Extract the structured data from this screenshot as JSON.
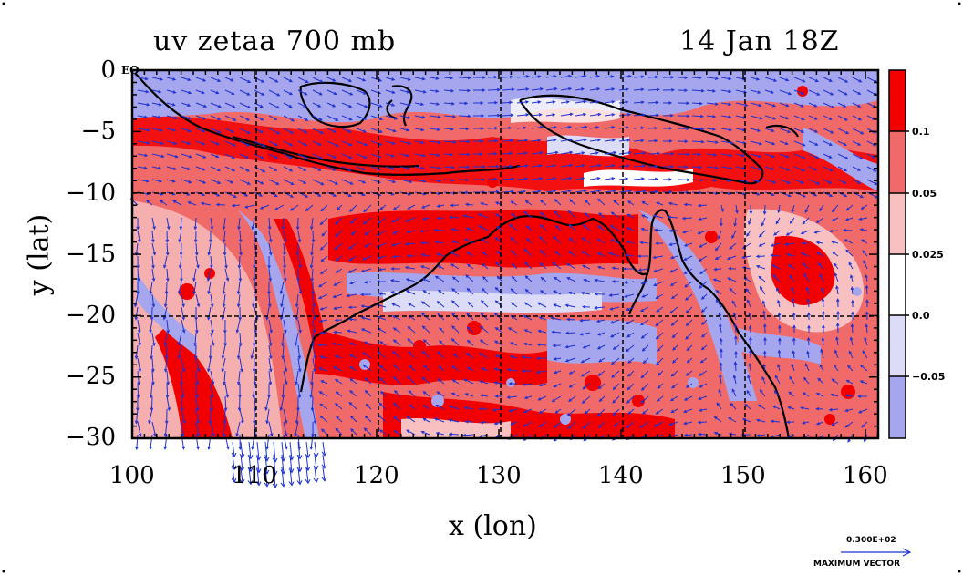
{
  "title_left": "uv zetaa 700 mb",
  "title_right": "14 Jan 18Z",
  "eq_label": "EQ",
  "x_axis": {
    "label": "x (lon)",
    "ticks": [
      "100",
      "110",
      "120",
      "130",
      "140",
      "150",
      "160"
    ]
  },
  "y_axis": {
    "label": "y (lat)",
    "ticks": [
      "0",
      "−5",
      "−10",
      "−15",
      "−20",
      "−25",
      "−30"
    ]
  },
  "colorbar": {
    "labels": [
      "0.1",
      "0.05",
      "0.025",
      "0.0",
      "−0.05"
    ],
    "colors": [
      "#f20000",
      "#f06a6a",
      "#f8c0c0",
      "#ffffff",
      "#dcdcf8",
      "#a6a6ee"
    ]
  },
  "max_vector": {
    "value": "0.300E+02",
    "label": "MAXIMUM VECTOR"
  },
  "colors": {
    "strong_pos": "#f20000",
    "mid_pos": "#f06a6a",
    "weak_pos": "#f8c0c0",
    "weak_neg": "#dcdcf8",
    "neg": "#a6a6ee",
    "vector": "#1e32d2",
    "coast": "#000000"
  }
}
